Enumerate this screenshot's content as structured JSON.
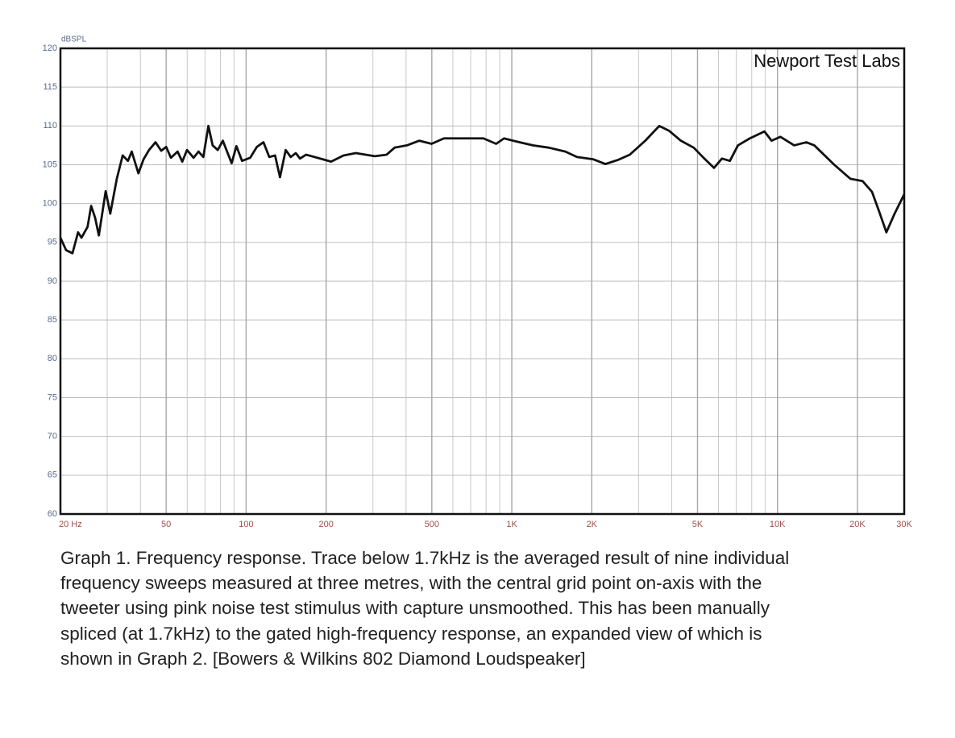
{
  "chart_data": {
    "type": "line",
    "y_label": "dBSPL",
    "annotation": "Newport Test Labs",
    "log_x": true,
    "grid": true,
    "color": "#111111",
    "xlim": [
      20,
      30000
    ],
    "ylim": [
      60,
      120
    ],
    "yticks": [
      60,
      65,
      70,
      75,
      80,
      85,
      90,
      95,
      100,
      105,
      110,
      115,
      120
    ],
    "xticks": [
      {
        "value": 20,
        "label": "20 Hz"
      },
      50,
      100,
      200,
      500,
      {
        "value": 1000,
        "label": "1K"
      },
      {
        "value": 2000,
        "label": "2K"
      },
      {
        "value": 5000,
        "label": "5K"
      },
      {
        "value": 10000,
        "label": "10K"
      },
      {
        "value": 20000,
        "label": "20K"
      },
      {
        "value": 30000,
        "label": "30K"
      }
    ],
    "x": [
      20,
      21,
      22.2,
      23.3,
      24,
      25.3,
      26.1,
      27,
      27.9,
      29.6,
      30.8,
      32.6,
      34.3,
      35.9,
      37.1,
      39.3,
      41.1,
      43.1,
      45.6,
      47.9,
      50,
      52.1,
      55.2,
      57.5,
      59.9,
      63.4,
      66.2,
      69,
      72.1,
      74.8,
      78.2,
      81.7,
      85.2,
      88.2,
      91.9,
      96.5,
      103.6,
      109.7,
      116.2,
      122.2,
      128.5,
      134.1,
      140.9,
      147.2,
      153.7,
      159.5,
      168.2,
      194.5,
      208.8,
      232.5,
      258.7,
      305,
      338,
      362,
      403,
      448,
      499,
      555,
      617,
      686,
      782,
      873,
      935,
      1040,
      1200,
      1380,
      1590,
      1760,
      2030,
      2250,
      2500,
      2780,
      3180,
      3590,
      3900,
      4330,
      4840,
      5270,
      5770,
      6180,
      6620,
      7100,
      7870,
      8930,
      9500,
      10260,
      11560,
      12840,
      13760,
      14740,
      16360,
      18800,
      20900,
      22700,
      24300,
      25700,
      27600,
      30000
    ],
    "values": [
      95.6,
      94.0,
      93.6,
      96.3,
      95.6,
      97.0,
      99.7,
      98.2,
      95.9,
      101.6,
      98.7,
      103.2,
      106.2,
      105.5,
      106.7,
      103.9,
      105.7,
      106.9,
      107.9,
      106.8,
      107.3,
      105.9,
      106.7,
      105.4,
      106.9,
      105.9,
      106.7,
      106.0,
      110.0,
      107.5,
      106.9,
      108.1,
      106.5,
      105.2,
      107.4,
      105.5,
      105.9,
      107.3,
      107.9,
      106.0,
      106.2,
      103.4,
      106.9,
      106.0,
      106.5,
      105.8,
      106.3,
      105.7,
      105.4,
      106.2,
      106.5,
      106.1,
      106.3,
      107.2,
      107.5,
      108.1,
      107.7,
      108.4,
      108.4,
      108.4,
      108.4,
      107.7,
      108.4,
      108.0,
      107.5,
      107.2,
      106.7,
      106.0,
      105.7,
      105.1,
      105.6,
      106.3,
      108.1,
      110.0,
      109.4,
      108.1,
      107.2,
      105.9,
      104.6,
      105.8,
      105.5,
      107.5,
      108.4,
      109.3,
      108.1,
      108.6,
      107.5,
      107.9,
      107.5,
      106.5,
      105.0,
      103.2,
      102.9,
      101.5,
      98.7,
      96.3,
      98.7,
      101.2
    ]
  },
  "caption": [
    "Graph 1. Frequency response. Trace below 1.7kHz is the averaged result of nine individual",
    "frequency sweeps measured at three metres, with the central grid point on-axis with the",
    "tweeter using pink noise test stimulus with capture unsmoothed. This has been manually",
    "spliced (at 1.7kHz) to the gated high-frequency response, an expanded view of which is",
    "shown in Graph 2. [Bowers & Wilkins 802 Diamond Loudspeaker]"
  ]
}
